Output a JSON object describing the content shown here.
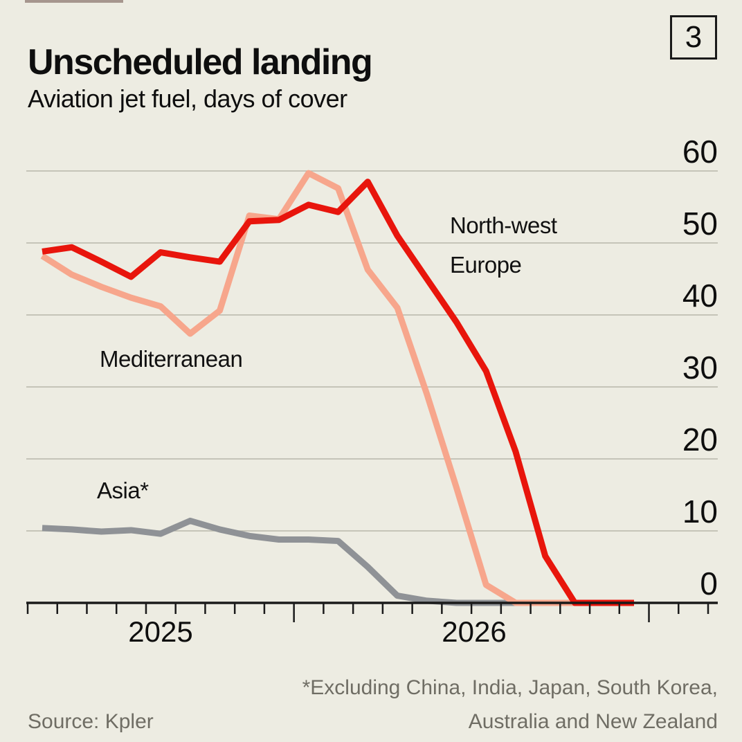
{
  "header": {
    "title": "Unscheduled landing",
    "subtitle": "Aviation jet fuel, days of cover",
    "figure_number": "3"
  },
  "footer": {
    "footnote_line1": "*Excluding China, India, Japan, South Korea,",
    "footnote_line2": "Australia and New Zealand",
    "source": "Source: Kpler"
  },
  "colors": {
    "background": "#edece2",
    "grid": "#b8b7aa",
    "axis": "#1a1a1a",
    "text": "#0e0e0e",
    "muted_text": "#6f6d64",
    "northwest_europe": "#e8150c",
    "mediterranean": "#f7a68c",
    "asia": "#8f9296"
  },
  "chart_data": {
    "type": "line",
    "title": "Aviation jet fuel, days of cover",
    "x_unit": "month",
    "grid": true,
    "ylim": [
      0,
      60
    ],
    "yticks": [
      0,
      10,
      20,
      30,
      40,
      50,
      60
    ],
    "x_axis": {
      "tick_count": 24,
      "long_tick_indices": [
        9,
        21
      ],
      "year_labels": [
        "2025",
        "2026"
      ]
    },
    "legend_position": "inline-labels",
    "series": [
      {
        "name": "North-west Europe",
        "color": "#e8150c",
        "values": [
          48.8,
          49.4,
          47.4,
          45.3,
          48.7,
          48.0,
          47.4,
          53.0,
          53.2,
          55.3,
          54.3,
          58.5,
          51.0,
          45.0,
          39.0,
          32.2,
          21.0,
          6.5,
          0,
          0,
          0
        ]
      },
      {
        "name": "Mediterranean",
        "color": "#f7a68c",
        "values": [
          48.2,
          45.6,
          43.9,
          42.4,
          41.2,
          37.4,
          40.6,
          53.8,
          53.3,
          59.7,
          57.6,
          46.3,
          41.0,
          29.0,
          16.0,
          2.5,
          0,
          0,
          0
        ]
      },
      {
        "name": "Asia*",
        "color": "#8f9296",
        "values": [
          10.4,
          10.2,
          9.9,
          10.1,
          9.6,
          11.4,
          10.2,
          9.3,
          8.8,
          8.8,
          8.6,
          5.0,
          1.0,
          0.3,
          0,
          0,
          0
        ]
      }
    ]
  }
}
